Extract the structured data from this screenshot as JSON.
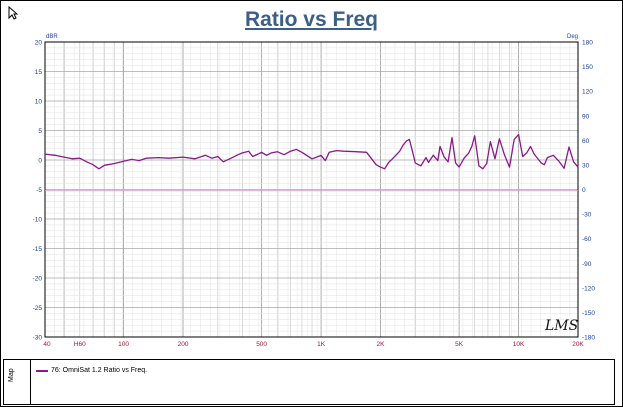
{
  "window": {
    "legend_tab_label": "Map"
  },
  "chart_data": {
    "type": "line",
    "title": "Ratio vs Freq",
    "left_axis_unit": "dBR",
    "right_axis_unit": "Deg",
    "x_scale": "log",
    "xlim": [
      40,
      20000
    ],
    "ylim": [
      -30,
      20
    ],
    "y2lim": [
      -180,
      180
    ],
    "grid": true,
    "x_tick_labels": [
      {
        "value": 40,
        "label": "40"
      },
      {
        "value": 60,
        "label": "H60"
      },
      {
        "value": 100,
        "label": "100"
      },
      {
        "value": 200,
        "label": "200"
      },
      {
        "value": 500,
        "label": "500"
      },
      {
        "value": 1000,
        "label": "1K"
      },
      {
        "value": 2000,
        "label": "2K"
      },
      {
        "value": 5000,
        "label": "5K"
      },
      {
        "value": 10000,
        "label": "10K"
      },
      {
        "value": 20000,
        "label": "20K"
      }
    ],
    "y_tick_labels": [
      "20",
      "15",
      "10",
      "5",
      "0",
      "-5",
      "-10",
      "-15",
      "-20",
      "-25",
      "-30"
    ],
    "y2_tick_labels": [
      "180",
      "150",
      "120",
      "90",
      "60",
      "30",
      "0",
      "-30",
      "-60",
      "-90",
      "-120",
      "-150",
      "-180"
    ],
    "watermark": "LMS",
    "colors": {
      "title": "#3d5f86",
      "series": "#8a1a8a",
      "phase_line": "#d79bd7",
      "axis_labels": "#1a3fa0",
      "x_labels": "#a8123a"
    },
    "series": [
      {
        "name": "76: OmniSat 1.2 Ratio vs Freq.",
        "x": [
          40,
          45,
          50,
          55,
          60,
          65,
          70,
          75,
          80,
          90,
          100,
          110,
          120,
          130,
          150,
          170,
          200,
          230,
          260,
          280,
          300,
          320,
          350,
          380,
          400,
          430,
          450,
          480,
          500,
          530,
          560,
          600,
          650,
          700,
          750,
          800,
          900,
          950,
          1000,
          1050,
          1100,
          1200,
          1300,
          1500,
          1700,
          1900,
          2000,
          2100,
          2200,
          2300,
          2500,
          2600,
          2700,
          2800,
          2900,
          3000,
          3200,
          3400,
          3500,
          3700,
          3900,
          4000,
          4200,
          4400,
          4600,
          4800,
          5000,
          5300,
          5600,
          5800,
          6000,
          6300,
          6600,
          6900,
          7200,
          7600,
          8000,
          8500,
          9000,
          9500,
          10000,
          10500,
          11000,
          11500,
          12000,
          13000,
          13500,
          14000,
          15000,
          16000,
          17000,
          18000,
          19000,
          20000
        ],
        "y": [
          1,
          0.8,
          0.5,
          0.2,
          0.3,
          -0.3,
          -0.8,
          -1.5,
          -0.9,
          -0.6,
          -0.2,
          0.1,
          -0.1,
          0.3,
          0.4,
          0.3,
          0.5,
          0.2,
          0.8,
          0.3,
          0.6,
          -0.3,
          0.3,
          0.9,
          1.2,
          1.5,
          0.6,
          1.0,
          1.3,
          0.8,
          1.2,
          1.4,
          0.9,
          1.5,
          1.8,
          1.3,
          0.2,
          0.5,
          0.8,
          -0.1,
          1.3,
          1.6,
          1.5,
          1.4,
          1.3,
          -0.8,
          -1.2,
          -1.5,
          -0.4,
          0.2,
          1.5,
          2.5,
          3.2,
          3.5,
          1.5,
          -0.5,
          -1.0,
          0.4,
          -0.4,
          0.8,
          -0.1,
          2.3,
          0.5,
          -0.3,
          3.8,
          -0.5,
          -1.2,
          0.3,
          1.2,
          2.3,
          4.1,
          -1.0,
          -1.5,
          -0.6,
          3.1,
          0.2,
          3.6,
          0.8,
          -1.2,
          3.5,
          4.3,
          0.6,
          1.2,
          2.3,
          1.0,
          -0.5,
          -0.8,
          0.4,
          0.8,
          -0.2,
          -1.4,
          2.2,
          -0.3,
          -1.2
        ]
      },
      {
        "name": "",
        "x": [
          40,
          20000
        ],
        "y": [
          -5.2,
          -5.2
        ]
      }
    ]
  }
}
